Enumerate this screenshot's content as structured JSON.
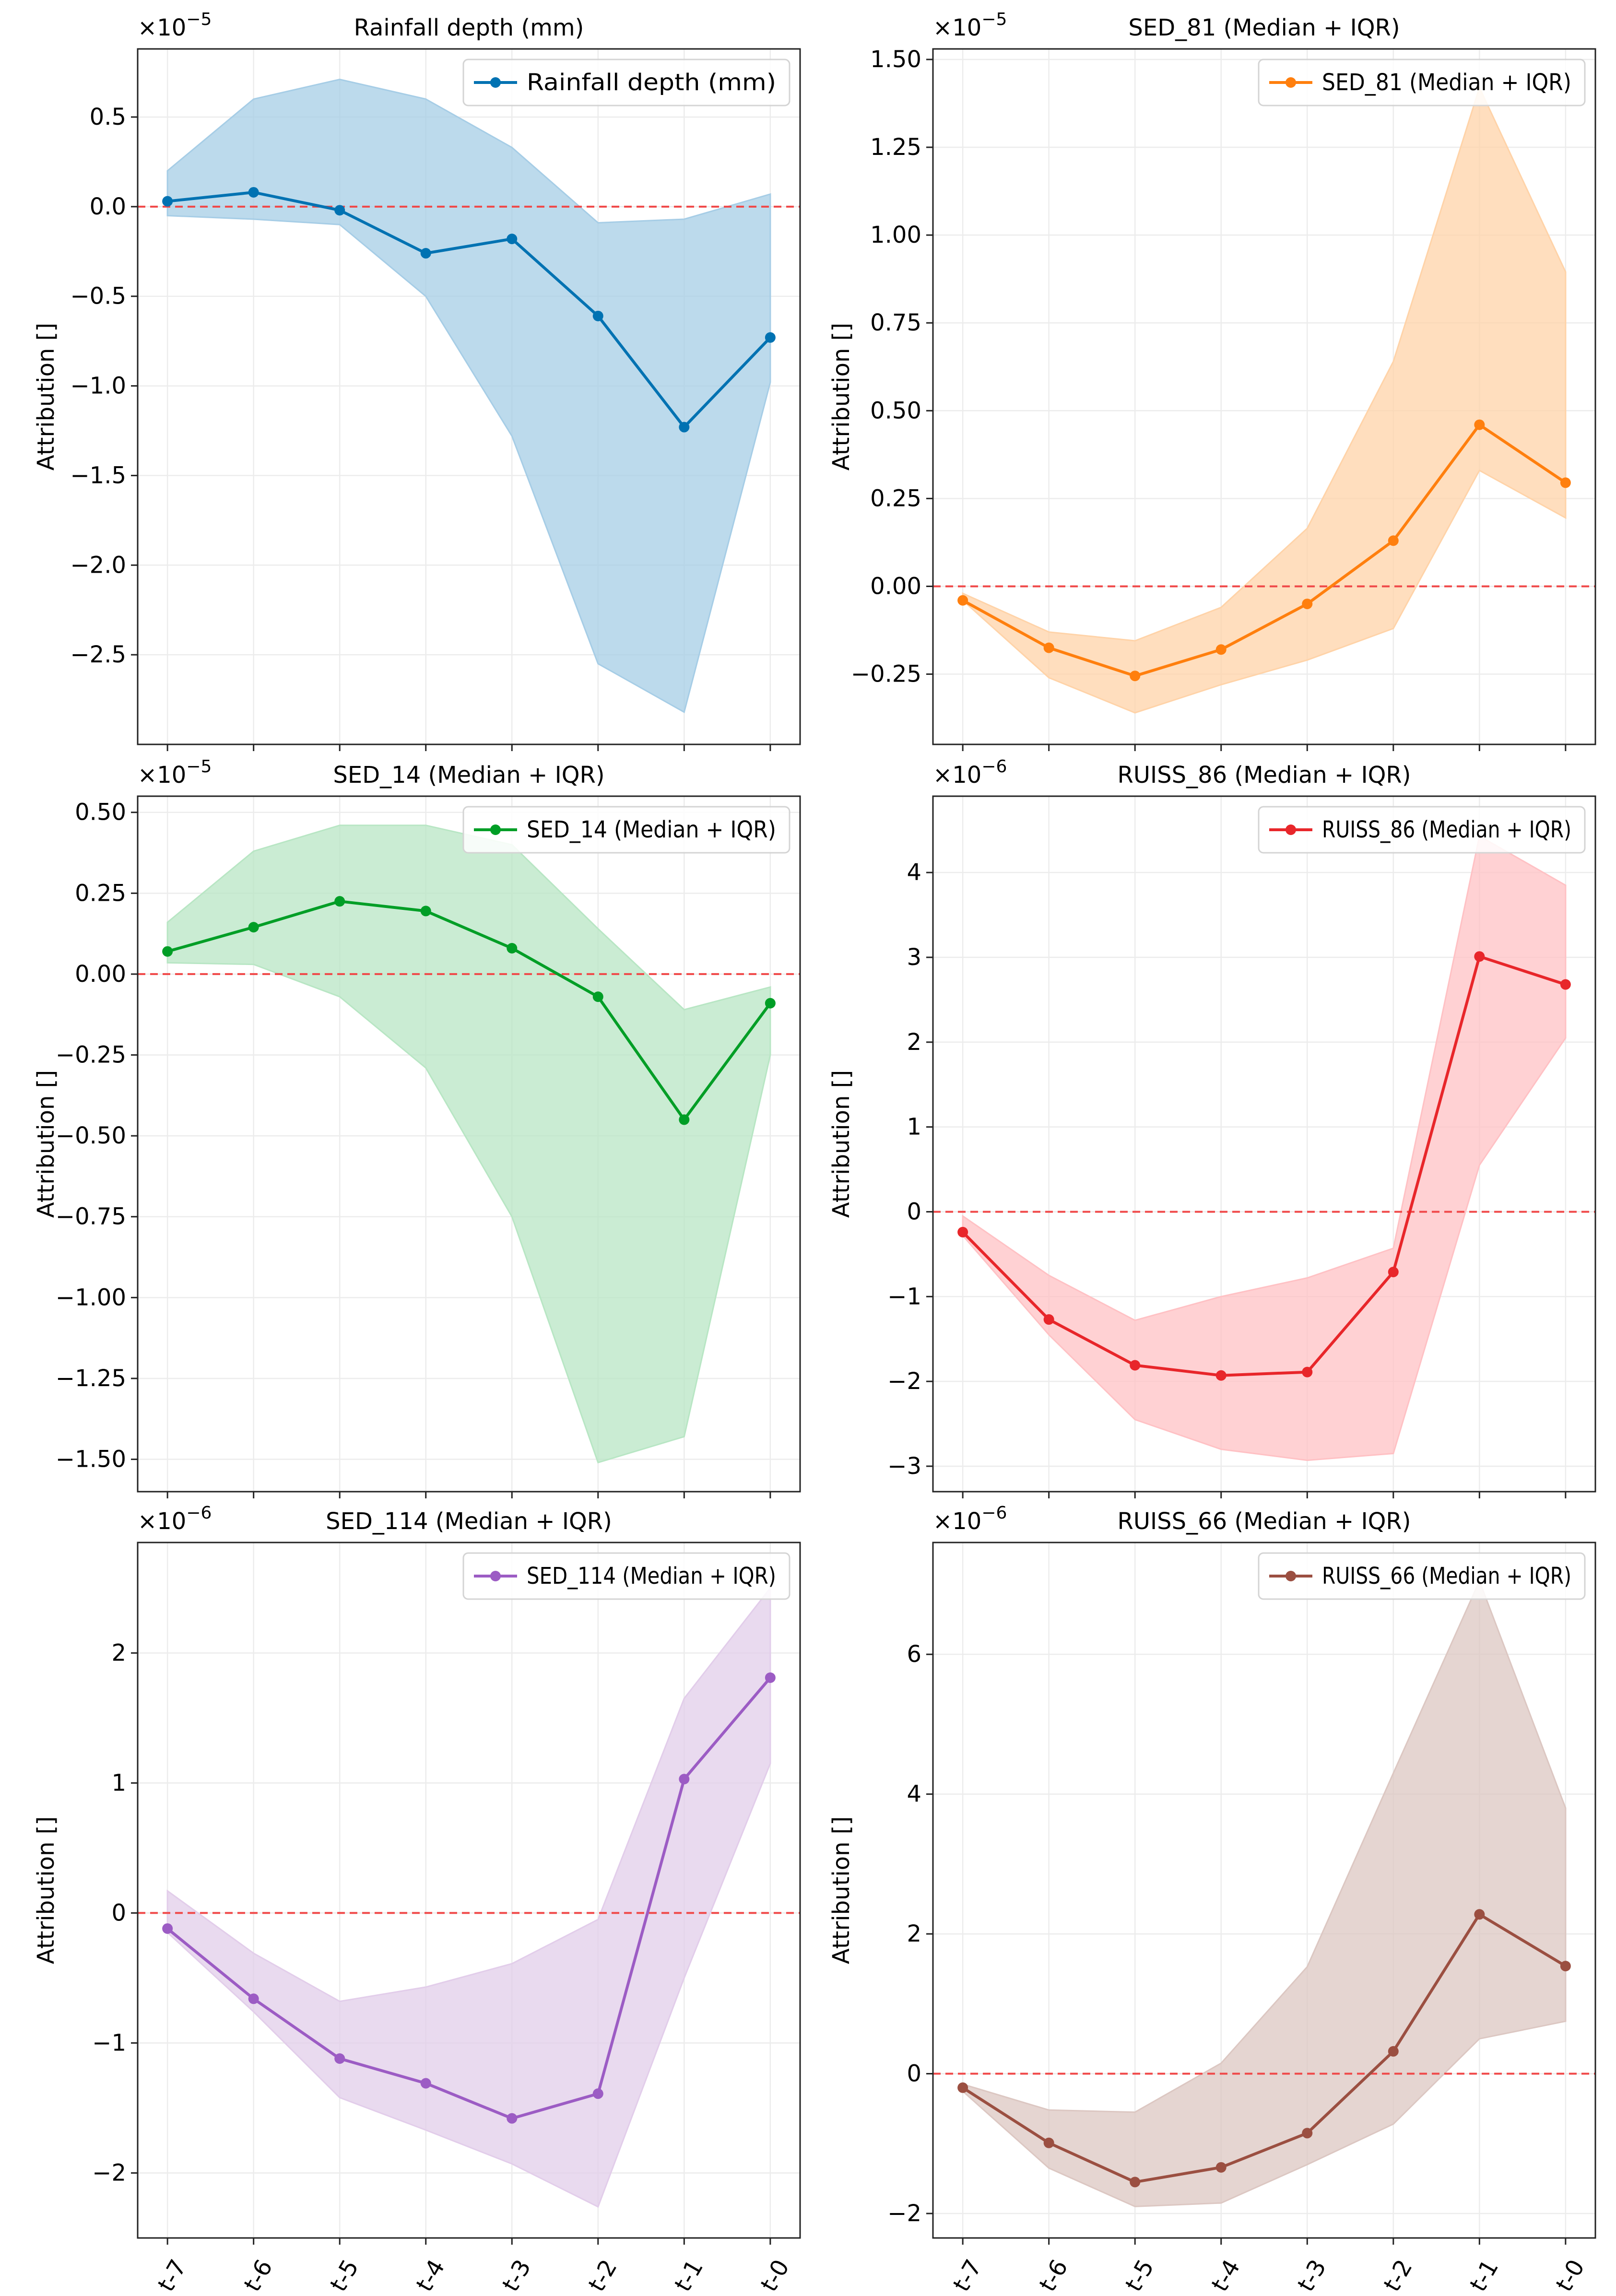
{
  "chart_data": [
    {
      "type": "line",
      "title": "Rainfall depth (mm)",
      "ylabel": "Attribution []",
      "x": [
        "t-7",
        "t-6",
        "t-5",
        "t-4",
        "t-3",
        "t-2",
        "t-1",
        "t-0"
      ],
      "scale_label": "×10",
      "scale_exp": "−5",
      "ylim": [
        -3.0,
        0.88
      ],
      "yticks": [
        0.5,
        0.0,
        -0.5,
        -1.0,
        -1.5,
        -2.0,
        -2.5
      ],
      "ytick_labels": [
        "0.5",
        "0.0",
        "−0.5",
        "−1.0",
        "−1.5",
        "−2.0",
        "−2.5"
      ],
      "color": "#0072b2",
      "fill": "#a6cde6",
      "legend": "Rainfall depth (mm)",
      "median": [
        0.03,
        0.08,
        -0.02,
        -0.26,
        -0.18,
        -0.61,
        -1.23,
        -0.73
      ],
      "q1": [
        -0.05,
        -0.07,
        -0.1,
        -0.5,
        -1.28,
        -2.55,
        -2.82,
        -0.98
      ],
      "q3": [
        0.2,
        0.6,
        0.71,
        0.6,
        0.33,
        -0.09,
        -0.07,
        0.07
      ]
    },
    {
      "type": "line",
      "title": "SED_81 (Median + IQR)",
      "ylabel": "Attribution []",
      "x": [
        "t-7",
        "t-6",
        "t-5",
        "t-4",
        "t-3",
        "t-2",
        "t-1",
        "t-0"
      ],
      "scale_label": "×10",
      "scale_exp": "−5",
      "ylim": [
        -0.45,
        1.53
      ],
      "yticks": [
        1.5,
        1.25,
        1.0,
        0.75,
        0.5,
        0.25,
        0.0,
        -0.25
      ],
      "ytick_labels": [
        "1.50",
        "1.25",
        "1.00",
        "0.75",
        "0.50",
        "0.25",
        "0.00",
        "−0.25"
      ],
      "color": "#ff7f0e",
      "fill": "#ffd3a8",
      "legend": "SED_81 (Median + IQR)",
      "median": [
        -0.04,
        -0.175,
        -0.255,
        -0.18,
        -0.05,
        0.13,
        0.46,
        0.295
      ],
      "q1": [
        -0.04,
        -0.26,
        -0.36,
        -0.28,
        -0.21,
        -0.12,
        0.33,
        0.195
      ],
      "q3": [
        -0.02,
        -0.13,
        -0.155,
        -0.06,
        0.165,
        0.64,
        1.42,
        0.895
      ]
    },
    {
      "type": "line",
      "title": "SED_14 (Median + IQR)",
      "ylabel": "Attribution []",
      "x": [
        "t-7",
        "t-6",
        "t-5",
        "t-4",
        "t-3",
        "t-2",
        "t-1",
        "t-0"
      ],
      "scale_label": "×10",
      "scale_exp": "−5",
      "ylim": [
        -1.6,
        0.55
      ],
      "yticks": [
        0.5,
        0.25,
        0.0,
        -0.25,
        -0.5,
        -0.75,
        -1.0,
        -1.25,
        -1.5
      ],
      "ytick_labels": [
        "0.50",
        "0.25",
        "0.00",
        "−0.25",
        "−0.50",
        "−0.75",
        "−1.00",
        "−1.25",
        "−1.50"
      ],
      "color": "#009e26",
      "fill": "#b8e6c4",
      "legend": "SED_14 (Median + IQR)",
      "median": [
        0.07,
        0.145,
        0.225,
        0.195,
        0.08,
        -0.07,
        -0.45,
        -0.09
      ],
      "q1": [
        0.035,
        0.03,
        -0.07,
        -0.29,
        -0.75,
        -1.51,
        -1.43,
        -0.25
      ],
      "q3": [
        0.16,
        0.38,
        0.46,
        0.46,
        0.4,
        0.14,
        -0.11,
        -0.04
      ]
    },
    {
      "type": "line",
      "title": "RUISS_86 (Median + IQR)",
      "ylabel": "Attribution []",
      "x": [
        "t-7",
        "t-6",
        "t-5",
        "t-4",
        "t-3",
        "t-2",
        "t-1",
        "t-0"
      ],
      "scale_label": "×10",
      "scale_exp": "−6",
      "ylim": [
        -3.3,
        4.9
      ],
      "yticks": [
        4,
        3,
        2,
        1,
        0,
        -1,
        -2,
        -3
      ],
      "ytick_labels": [
        "4",
        "3",
        "2",
        "1",
        "0",
        "−1",
        "−2",
        "−3"
      ],
      "color": "#e8262a",
      "fill": "#ffc1c4",
      "legend": "RUISS_86 (Median + IQR)",
      "median": [
        -0.24,
        -1.27,
        -1.81,
        -1.93,
        -1.89,
        -0.71,
        3.01,
        2.68
      ],
      "q1": [
        -0.28,
        -1.45,
        -2.45,
        -2.8,
        -2.93,
        -2.85,
        0.55,
        2.05
      ],
      "q3": [
        -0.05,
        -0.75,
        -1.28,
        -1.0,
        -0.78,
        -0.43,
        4.43,
        3.85
      ]
    },
    {
      "type": "line",
      "title": "SED_114 (Median + IQR)",
      "ylabel": "Attribution []",
      "x": [
        "t-7",
        "t-6",
        "t-5",
        "t-4",
        "t-3",
        "t-2",
        "t-1",
        "t-0"
      ],
      "scale_label": "×10",
      "scale_exp": "−6",
      "ylim": [
        -2.5,
        2.85
      ],
      "yticks": [
        2,
        1,
        0,
        -1,
        -2
      ],
      "ytick_labels": [
        "2",
        "1",
        "0",
        "−1",
        "−2"
      ],
      "color": "#9c5cc4",
      "fill": "#e2cdea",
      "legend": "SED_114 (Median + IQR)",
      "median": [
        -0.12,
        -0.66,
        -1.12,
        -1.31,
        -1.58,
        -1.39,
        1.03,
        1.81
      ],
      "q1": [
        -0.15,
        -0.76,
        -1.42,
        -1.67,
        -1.93,
        -2.26,
        -0.5,
        1.15
      ],
      "q3": [
        0.17,
        -0.31,
        -0.68,
        -0.57,
        -0.39,
        -0.05,
        1.65,
        2.5
      ]
    },
    {
      "type": "line",
      "title": "RUISS_66 (Median + IQR)",
      "ylabel": "Attribution []",
      "x": [
        "t-7",
        "t-6",
        "t-5",
        "t-4",
        "t-3",
        "t-2",
        "t-1",
        "t-0"
      ],
      "scale_label": "×10",
      "scale_exp": "−6",
      "ylim": [
        -2.35,
        7.6
      ],
      "yticks": [
        6,
        4,
        2,
        0,
        -2
      ],
      "ytick_labels": [
        "6",
        "4",
        "2",
        "0",
        "−2"
      ],
      "color": "#9b4f41",
      "fill": "#dcc7c2",
      "legend": "RUISS_66 (Median + IQR)",
      "median": [
        -0.2,
        -0.99,
        -1.55,
        -1.34,
        -0.85,
        0.32,
        2.28,
        1.54
      ],
      "q1": [
        -0.25,
        -1.35,
        -1.9,
        -1.85,
        -1.3,
        -0.72,
        0.5,
        0.75
      ],
      "q3": [
        -0.15,
        -0.52,
        -0.55,
        0.15,
        1.53,
        4.3,
        7.05,
        3.8
      ]
    }
  ]
}
